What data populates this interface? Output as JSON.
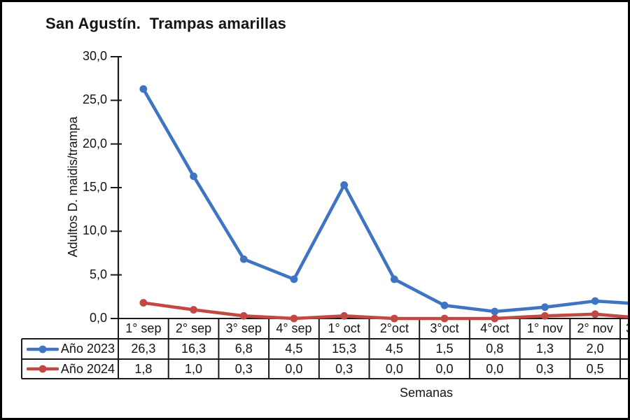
{
  "window": {
    "background": "#ffffff",
    "frame_color": "#000000"
  },
  "chart_data": {
    "type": "line",
    "title": "San Agustín.  Trampas amarillas",
    "ylabel": "Adultos D. maidis/trampa",
    "xlabel": "Semanas",
    "ylim": [
      0,
      30
    ],
    "grid": false,
    "legend_position": "table-left",
    "yticks": [
      {
        "value": 30,
        "label": "30,0"
      },
      {
        "value": 25,
        "label": "25,0"
      },
      {
        "value": 20,
        "label": "20,0"
      },
      {
        "value": 15,
        "label": "15,0"
      },
      {
        "value": 10,
        "label": "10,0"
      },
      {
        "value": 5,
        "label": "5,0"
      },
      {
        "value": 0,
        "label": "0,0"
      }
    ],
    "categories": [
      "1° sep",
      "2° sep",
      "3° sep",
      "4° sep",
      "1° oct",
      "2°oct",
      "3°oct",
      "4°oct",
      "1° nov",
      "2° nov"
    ],
    "partial_last_category": "3",
    "series": [
      {
        "name": "Año 2023",
        "color": "#3E74C2",
        "values": [
          26.3,
          16.3,
          6.8,
          4.5,
          15.3,
          4.5,
          1.5,
          0.8,
          1.3,
          2.0
        ],
        "display_values": [
          "26,3",
          "16,3",
          "6,8",
          "4,5",
          "15,3",
          "4,5",
          "1,5",
          "0,8",
          "1,3",
          "2,0"
        ],
        "edge_exit_value": 1.7
      },
      {
        "name": "Año 2024",
        "color": "#C14843",
        "values": [
          1.8,
          1.0,
          0.3,
          0.0,
          0.3,
          0.0,
          0.0,
          0.0,
          0.3,
          0.5
        ],
        "display_values": [
          "1,8",
          "1,0",
          "0,3",
          "0,0",
          "0,3",
          "0,0",
          "0,0",
          "0,0",
          "0,3",
          "0,5"
        ],
        "edge_exit_value": 0.1
      }
    ]
  }
}
